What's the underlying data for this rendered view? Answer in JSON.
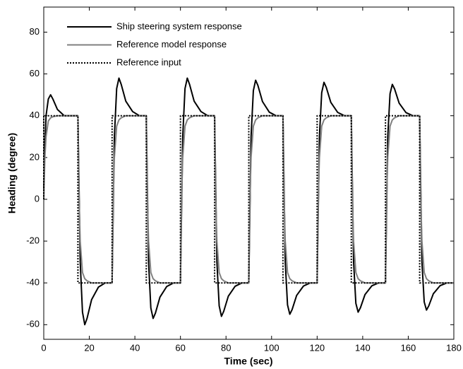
{
  "chart_data": {
    "type": "line",
    "xlabel": "Time (sec)",
    "ylabel": "Heading (degree)",
    "x": [
      0,
      0,
      0.5,
      1,
      2,
      3,
      4,
      6,
      9,
      12,
      15,
      15,
      15.5,
      16,
      17,
      18,
      19,
      21,
      24,
      27,
      30,
      30,
      30.5,
      31,
      32,
      33,
      34,
      36,
      39,
      42,
      45,
      45,
      45.5,
      46,
      47,
      48,
      49,
      51,
      54,
      57,
      60,
      60,
      60.5,
      61,
      62,
      63,
      64,
      66,
      69,
      72,
      75,
      75,
      75.5,
      76,
      77,
      78,
      79,
      81,
      84,
      87,
      90,
      90,
      90.5,
      91,
      92,
      93,
      94,
      96,
      99,
      102,
      105,
      105,
      105.5,
      106,
      107,
      108,
      109,
      111,
      114,
      117,
      120,
      120,
      120.5,
      121,
      122,
      123,
      124,
      126,
      129,
      132,
      135,
      135,
      135.5,
      136,
      137,
      138,
      139,
      141,
      144,
      147,
      150,
      150,
      150.5,
      151,
      152,
      153,
      154,
      156,
      159,
      162,
      165,
      165,
      165.5,
      166,
      167,
      168,
      169,
      171,
      174,
      177,
      180
    ],
    "series": [
      {
        "name": "Ship steering system response",
        "color": "#000000",
        "style": "solid",
        "width": 2,
        "values": [
          5,
          5,
          25,
          40,
          48,
          50,
          48,
          43,
          40,
          40,
          40,
          40,
          5,
          -30,
          -54,
          -60,
          -57,
          -48,
          -42,
          -40,
          -40,
          -40,
          -5,
          30,
          53,
          58,
          55,
          47,
          42,
          40,
          40,
          40,
          5,
          -30,
          -52,
          -57,
          -54.5,
          -46.8,
          -41.7,
          -40,
          -40,
          -40,
          -5,
          30,
          53,
          58,
          55,
          47,
          42,
          40,
          40,
          40,
          5,
          -30,
          -51,
          -56,
          -53.6,
          -46.4,
          -41.6,
          -40,
          -40,
          -40,
          -5,
          30,
          52,
          57,
          54.5,
          46.8,
          41.7,
          40,
          40,
          40,
          5,
          -30,
          -50.5,
          -55,
          -52.8,
          -46,
          -41.5,
          -40,
          -40,
          -40,
          -5,
          30,
          51,
          56,
          53.6,
          46.4,
          41.6,
          40,
          40,
          40,
          5,
          -30,
          -49.8,
          -54,
          -51.9,
          -45.6,
          -41.4,
          -40,
          -40,
          -40,
          -5,
          30,
          50.5,
          55,
          52.8,
          46,
          41.5,
          40,
          40,
          40,
          5,
          -30,
          -49.1,
          -53,
          -51,
          -45.2,
          -41.3,
          -40,
          -40
        ]
      },
      {
        "name": "Reference model response",
        "color": "#808080",
        "style": "solid",
        "width": 2,
        "values": [
          0,
          0,
          20,
          30,
          37.5,
          39,
          39.5,
          40,
          40,
          40,
          40,
          40,
          0,
          -20,
          -35,
          -38,
          -39,
          -40,
          -40,
          -40,
          -40,
          -40,
          0,
          20,
          35,
          38,
          39,
          40,
          40,
          40,
          40,
          40,
          0,
          -20,
          -35,
          -38,
          -39,
          -40,
          -40,
          -40,
          -40,
          -40,
          0,
          20,
          35,
          38,
          39,
          40,
          40,
          40,
          40,
          40,
          0,
          -20,
          -35,
          -38,
          -39,
          -40,
          -40,
          -40,
          -40,
          -40,
          0,
          20,
          35,
          38,
          39,
          40,
          40,
          40,
          40,
          40,
          0,
          -20,
          -35,
          -38,
          -39,
          -40,
          -40,
          -40,
          -40,
          -40,
          0,
          20,
          35,
          38,
          39,
          40,
          40,
          40,
          40,
          40,
          0,
          -20,
          -35,
          -38,
          -39,
          -40,
          -40,
          -40,
          -40,
          -40,
          0,
          20,
          35,
          38,
          39,
          40,
          40,
          40,
          40,
          40,
          0,
          -20,
          -35,
          -38,
          -39,
          -40,
          -40,
          -40,
          -40
        ]
      },
      {
        "name": "Reference input",
        "color": "#000000",
        "style": "dotted",
        "width": 2,
        "values": [
          0,
          40,
          40,
          40,
          40,
          40,
          40,
          40,
          40,
          40,
          40,
          -40,
          -40,
          -40,
          -40,
          -40,
          -40,
          -40,
          -40,
          -40,
          -40,
          40,
          40,
          40,
          40,
          40,
          40,
          40,
          40,
          40,
          40,
          -40,
          -40,
          -40,
          -40,
          -40,
          -40,
          -40,
          -40,
          -40,
          -40,
          40,
          40,
          40,
          40,
          40,
          40,
          40,
          40,
          40,
          40,
          -40,
          -40,
          -40,
          -40,
          -40,
          -40,
          -40,
          -40,
          -40,
          -40,
          40,
          40,
          40,
          40,
          40,
          40,
          40,
          40,
          40,
          40,
          -40,
          -40,
          -40,
          -40,
          -40,
          -40,
          -40,
          -40,
          -40,
          -40,
          40,
          40,
          40,
          40,
          40,
          40,
          40,
          40,
          40,
          40,
          -40,
          -40,
          -40,
          -40,
          -40,
          -40,
          -40,
          -40,
          -40,
          -40,
          40,
          40,
          40,
          40,
          40,
          40,
          40,
          40,
          40,
          40,
          -40,
          -40,
          -40,
          -40,
          -40,
          -40,
          -40,
          -40,
          -40,
          -40
        ]
      }
    ],
    "xlim": [
      0,
      180
    ],
    "xticks": [
      0,
      20,
      40,
      60,
      80,
      100,
      120,
      140,
      160,
      180
    ],
    "ylim": [
      -67,
      92
    ],
    "yticks": [
      -60,
      -40,
      -20,
      0,
      20,
      40,
      60,
      80
    ],
    "grid": false,
    "legend": "upper left"
  }
}
